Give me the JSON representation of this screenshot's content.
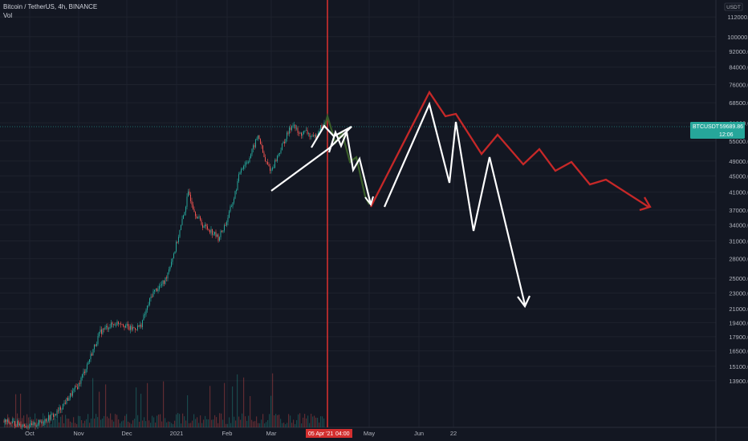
{
  "header": {
    "symbol_title": "Bitcoin / TetherUS, 4h, BINANCE",
    "vol_label": "Vol",
    "currency_badge": "USDT"
  },
  "colors": {
    "background": "#131722",
    "grid": "#1e222d",
    "axis_text": "#b2b5be",
    "up_candle": "#26a69a",
    "down_candle": "#ef5350",
    "crosshair": "#d32f2f",
    "price_line": "#26a69a",
    "red_path": "#c62828",
    "green_path": "#3a5f2a",
    "white_path": "#ffffff"
  },
  "chart_data": {
    "type": "candlestick",
    "y_scale": "log",
    "y_ticks": [
      "112000.00",
      "100000.00",
      "92000.00",
      "84000.00",
      "76000.00",
      "68500.00",
      "61000.00",
      "55000.00",
      "49000.00",
      "45000.00",
      "41000.00",
      "37000.00",
      "34000.00",
      "31000.00",
      "28000.00",
      "25000.00",
      "23000.00",
      "21000.00",
      "19400.00",
      "17900.00",
      "16500.00",
      "15100.00",
      "13900.00"
    ],
    "y_tick_values": [
      112000,
      100000,
      92000,
      84000,
      76000,
      68500,
      61000,
      55000,
      49000,
      45000,
      41000,
      37000,
      34000,
      31000,
      28000,
      25000,
      23000,
      21000,
      19400,
      17900,
      16500,
      15100,
      13900
    ],
    "x_ticks": [
      "Oct",
      "Nov",
      "Dec",
      "2021",
      "Feb",
      "Mar",
      "May",
      "Jun",
      "22"
    ],
    "current_price": {
      "symbol": "BTCUSDT",
      "value": "59689.86",
      "countdown": "12:06"
    },
    "crosshair": {
      "date_label": "05 Apr '21",
      "time_label": "04:00"
    }
  }
}
